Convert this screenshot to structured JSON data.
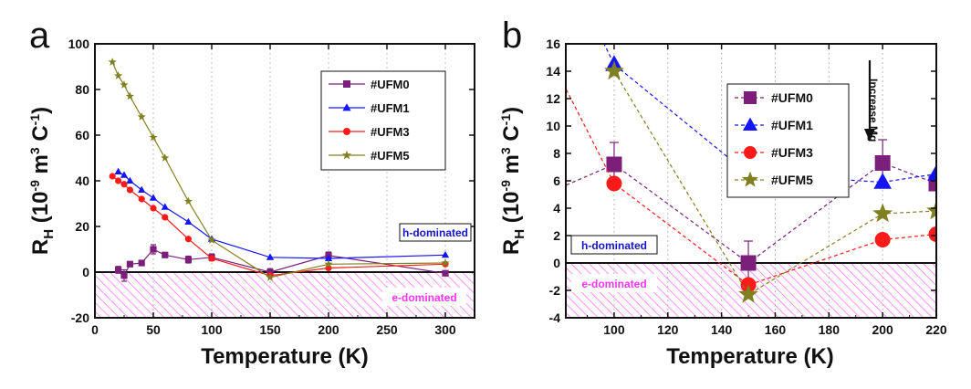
{
  "colors": {
    "UFM0": "#7b1f7b",
    "UFM1": "#1414ff",
    "UFM3": "#ff1a1a",
    "UFM5": "#808020",
    "hatch": "#ff66ff",
    "h_label": "#1414c8",
    "e_label": "#ff33ff"
  },
  "chart_data": [
    {
      "panel": "a",
      "type": "line",
      "xlabel": "Temperature (K)",
      "ylabel": "R_H (10^-9 m^3 C^-1)",
      "ylabel_parts": {
        "main": "R",
        "sub": "H",
        "unit_pre": " (10",
        "exp1": "-9",
        "unit_mid": " m",
        "exp2": "3",
        "unit_post": " C",
        "exp3": "-1",
        "close": ")"
      },
      "xlim": [
        0,
        325
      ],
      "ylim": [
        -20,
        100
      ],
      "xticks": [
        0,
        50,
        100,
        150,
        200,
        250,
        300
      ],
      "yticks": [
        -20,
        0,
        20,
        40,
        60,
        80,
        100
      ],
      "grid": "vertical dotted",
      "legend_position": "top-right",
      "h_region_label": "h-dominated",
      "e_region_label": "e-dominated",
      "series": [
        {
          "name": "#UFM0",
          "marker": "square",
          "color_key": "UFM0",
          "x": [
            20,
            25,
            30,
            40,
            50,
            60,
            80,
            100,
            150,
            200,
            300
          ],
          "y": [
            1.0,
            -1.5,
            3.5,
            4.0,
            10.0,
            7.5,
            5.5,
            6.5,
            0.0,
            7.3,
            -0.5
          ],
          "err": [
            1.5,
            2.5,
            1.0,
            1.0,
            2.0,
            1.0,
            1.5,
            1.5,
            1.5,
            1.5,
            1.0
          ]
        },
        {
          "name": "#UFM1",
          "marker": "triangle",
          "color_key": "UFM1",
          "x": [
            20,
            25,
            30,
            40,
            50,
            60,
            80,
            100,
            150,
            200,
            300
          ],
          "y": [
            44.0,
            42.5,
            40.0,
            36.0,
            32.5,
            28.5,
            22.0,
            14.5,
            6.5,
            6.0,
            7.5
          ]
        },
        {
          "name": "#UFM3",
          "marker": "circle",
          "color_key": "UFM3",
          "x": [
            15,
            20,
            25,
            30,
            40,
            50,
            60,
            80,
            100,
            150,
            200,
            300
          ],
          "y": [
            42.0,
            40.0,
            38.5,
            36.0,
            32.0,
            28.0,
            24.0,
            14.5,
            6.0,
            -1.5,
            1.8,
            3.5
          ]
        },
        {
          "name": "#UFM5",
          "marker": "star",
          "color_key": "UFM5",
          "x": [
            15,
            20,
            25,
            30,
            40,
            50,
            60,
            80,
            100,
            150,
            200,
            300
          ],
          "y": [
            92.0,
            86.0,
            82.0,
            77.0,
            68.0,
            59.0,
            50.0,
            31.0,
            14.0,
            -2.3,
            3.5,
            4.0
          ]
        }
      ]
    },
    {
      "panel": "b",
      "type": "line",
      "xlabel": "Temperature (K)",
      "ylabel": "R_H (10^-9 m^3 C^-1)",
      "ylabel_parts": {
        "main": "R",
        "sub": "H",
        "unit_pre": " (10",
        "exp1": "-9",
        "unit_mid": " m",
        "exp2": "3",
        "unit_post": " C",
        "exp3": "-1",
        "close": ")"
      },
      "xlim": [
        82,
        220
      ],
      "ylim": [
        -4,
        16
      ],
      "xticks": [
        100,
        120,
        140,
        160,
        180,
        200,
        220
      ],
      "yticks": [
        -4,
        -2,
        0,
        2,
        4,
        6,
        8,
        10,
        12,
        14,
        16
      ],
      "grid": "vertical dotted",
      "legend_position": "top-right",
      "h_region_label": "h-dominated",
      "e_region_label": "e-dominated",
      "annotation": "Increase Mg",
      "series": [
        {
          "name": "#UFM0",
          "marker": "square",
          "color_key": "UFM0",
          "x": [
            80,
            100,
            150,
            200,
            220
          ],
          "y": [
            5.5,
            7.2,
            0.0,
            7.3,
            5.8
          ],
          "err": [
            0,
            1.6,
            1.6,
            1.7,
            0
          ]
        },
        {
          "name": "#UFM1",
          "marker": "triangle",
          "color_key": "UFM1",
          "x": [
            95,
            100,
            150,
            200,
            220
          ],
          "y": [
            16.5,
            14.5,
            6.5,
            5.9,
            6.5
          ]
        },
        {
          "name": "#UFM3",
          "marker": "circle",
          "color_key": "UFM3",
          "x": [
            80,
            100,
            150,
            200,
            220
          ],
          "y": [
            13.5,
            5.8,
            -1.6,
            1.7,
            2.1
          ]
        },
        {
          "name": "#UFM5",
          "marker": "star",
          "color_key": "UFM5",
          "x": [
            100,
            150,
            200,
            220
          ],
          "y": [
            14.0,
            -2.3,
            3.6,
            3.8
          ]
        }
      ]
    }
  ]
}
